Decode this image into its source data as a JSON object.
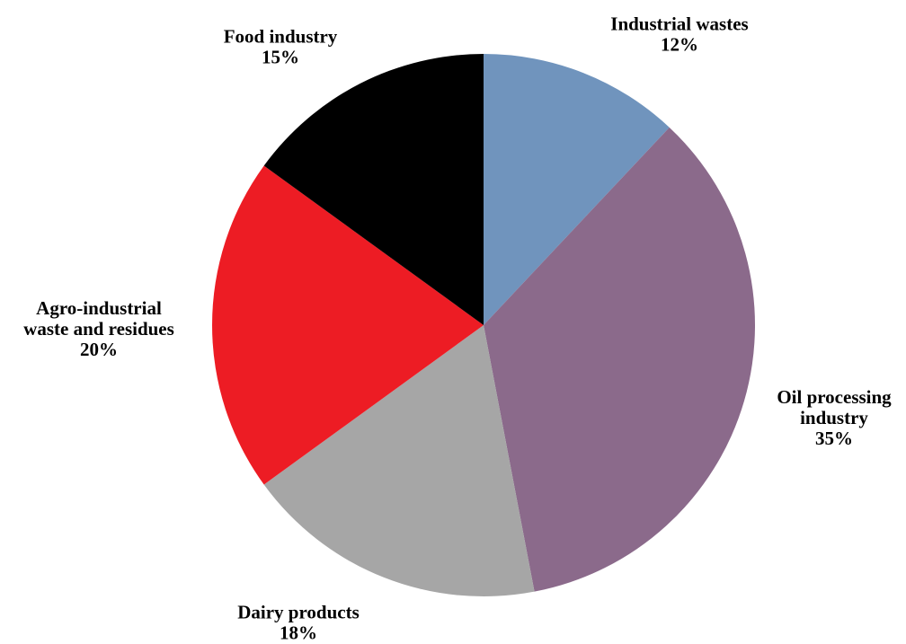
{
  "chart_data": {
    "type": "pie",
    "slices": [
      {
        "label": [
          "Industrial wastes"
        ],
        "value": 12,
        "value_label": "12%",
        "color": "#7094bd"
      },
      {
        "label": [
          "Oil processing",
          "industry"
        ],
        "value": 35,
        "value_label": "35%",
        "color": "#8b6a8b"
      },
      {
        "label": [
          "Dairy products"
        ],
        "value": 18,
        "value_label": "18%",
        "color": "#a6a6a6"
      },
      {
        "label": [
          "Agro-industrial",
          "waste and residues"
        ],
        "value": 20,
        "value_label": "20%",
        "color": "#ed1c24"
      },
      {
        "label": [
          "Food industry"
        ],
        "value": 15,
        "value_label": "15%",
        "color": "#000000"
      }
    ],
    "start_angle": "12 o'clock",
    "direction": "clockwise",
    "legend": "none"
  }
}
